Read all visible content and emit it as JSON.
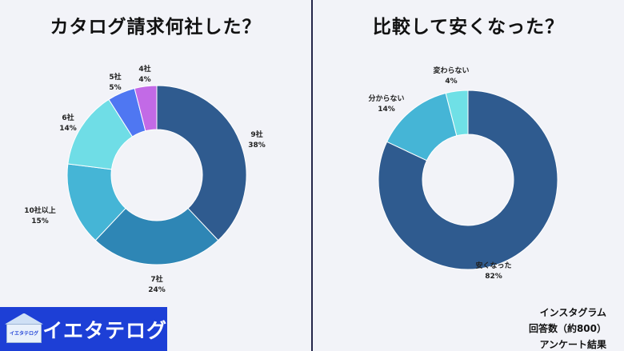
{
  "colors": {
    "background": "#f2f3f8",
    "divider": "#23264a",
    "brand_bg": "#1d3fd6"
  },
  "chart_data": [
    {
      "type": "pie",
      "title": "カタログ請求何社した？",
      "donut": true,
      "slices": [
        {
          "label": "9社",
          "value": 38,
          "value_label": "38%",
          "color": "#2f5b8f"
        },
        {
          "label": "7社",
          "value": 24,
          "value_label": "24%",
          "color": "#2e86b5"
        },
        {
          "label": "10社以上",
          "value": 15,
          "value_label": "15%",
          "color": "#45b5d6"
        },
        {
          "label": "6社",
          "value": 14,
          "value_label": "14%",
          "color": "#6fdde6"
        },
        {
          "label": "5社",
          "value": 5,
          "value_label": "5%",
          "color": "#4f77f2"
        },
        {
          "label": "4社",
          "value": 4,
          "value_label": "4%",
          "color": "#c26ae6"
        }
      ]
    },
    {
      "type": "pie",
      "title": "比較して安くなった？",
      "donut": true,
      "slices": [
        {
          "label": "安くなった",
          "value": 82,
          "value_label": "82%",
          "color": "#2f5b8f"
        },
        {
          "label": "分からない",
          "value": 14,
          "value_label": "14%",
          "color": "#45b5d6"
        },
        {
          "label": "変わらない",
          "value": 4,
          "value_label": "4%",
          "color": "#6fe0e6"
        }
      ]
    }
  ],
  "brand": {
    "logo_small": "イエタテログ",
    "name": "イエタテログ"
  },
  "source": {
    "line1": "インスタグラム",
    "line2": "回答数（約800）",
    "line3": "アンケート結果"
  }
}
